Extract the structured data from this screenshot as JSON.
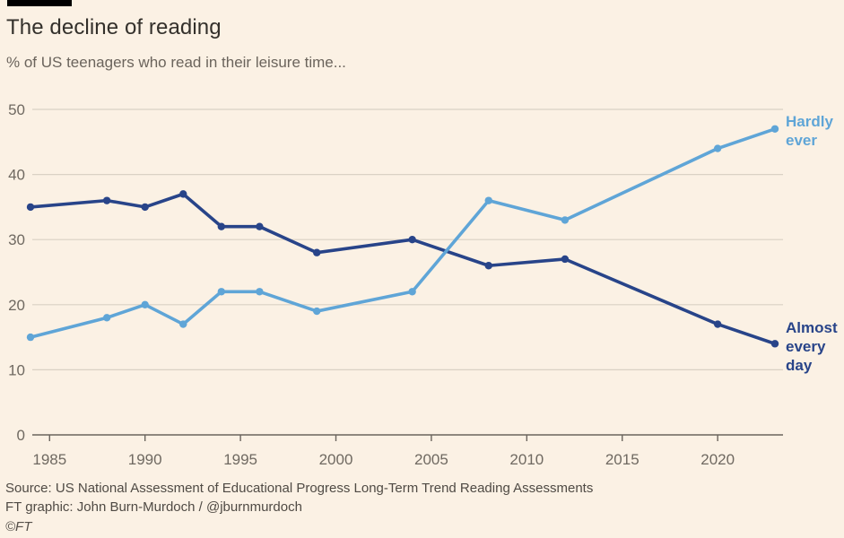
{
  "header": {
    "title": "The decline of reading",
    "subtitle": "% of US teenagers who read in their leisure time..."
  },
  "chart_data": {
    "type": "line",
    "x": [
      1984,
      1988,
      1990,
      1992,
      1994,
      1996,
      1999,
      2004,
      2008,
      2012,
      2020,
      2023
    ],
    "series": [
      {
        "name": "Almost every day",
        "color": "#284489",
        "values": [
          35,
          36,
          35,
          37,
          32,
          32,
          28,
          30,
          26,
          27,
          17,
          14
        ]
      },
      {
        "name": "Hardly ever",
        "color": "#5FA5D7",
        "values": [
          15,
          18,
          20,
          17,
          22,
          22,
          19,
          22,
          36,
          33,
          44,
          47
        ]
      }
    ],
    "title": "The decline of reading",
    "xlabel": "",
    "ylabel": "",
    "xlim": [
      1984,
      2023
    ],
    "ylim": [
      0,
      50
    ],
    "yticks": [
      0,
      10,
      20,
      30,
      40,
      50
    ],
    "xticks": [
      1985,
      1990,
      1995,
      2000,
      2005,
      2010,
      2015,
      2020
    ],
    "grid": "horizontal",
    "legend_position": "right-edge-annotations",
    "marker": "circle"
  },
  "footer": {
    "source": "Source: US National Assessment of Educational Progress Long-Term Trend Reading Assessments",
    "credit": "FT graphic: John Burn-Murdoch / @jburnmurdoch",
    "copyright": "©FT"
  },
  "colors": {
    "background": "#FBF1E4",
    "grid": "#DAD1C4",
    "axis": "#6A645D",
    "title_text": "#33302B",
    "subtitle_text": "#6B645C",
    "tick_label": "#6F6961"
  }
}
